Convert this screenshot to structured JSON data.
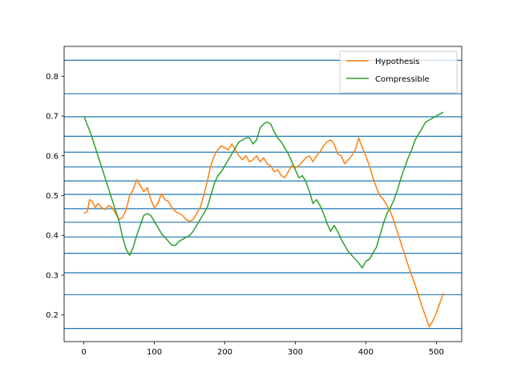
{
  "chart_data": {
    "type": "line",
    "title": "",
    "xlabel": "",
    "ylabel": "",
    "xlim": [
      -28,
      536
    ],
    "ylim": [
      0.133,
      0.875
    ],
    "xticks": [
      0,
      100,
      200,
      300,
      400,
      500
    ],
    "xtick_labels": [
      "0",
      "100",
      "200",
      "300",
      "400",
      "500"
    ],
    "yticks": [
      0.2,
      0.3,
      0.4,
      0.5,
      0.6,
      0.7,
      0.8
    ],
    "ytick_labels": [
      "0.2",
      "0.3",
      "0.4",
      "0.5",
      "0.6",
      "0.7",
      "0.8"
    ],
    "hlines": [
      0.166,
      0.251,
      0.306,
      0.355,
      0.396,
      0.433,
      0.467,
      0.503,
      0.537,
      0.572,
      0.609,
      0.649,
      0.698,
      0.756,
      0.84
    ],
    "hline_color": "#1f77b4",
    "legend_position": "upper right",
    "grid": false,
    "series": [
      {
        "name": "Hypothesis",
        "color": "#ff7f0e",
        "points": [
          [
            0,
            0.455
          ],
          [
            5,
            0.46
          ],
          [
            8,
            0.49
          ],
          [
            12,
            0.485
          ],
          [
            16,
            0.47
          ],
          [
            20,
            0.48
          ],
          [
            25,
            0.47
          ],
          [
            30,
            0.465
          ],
          [
            35,
            0.475
          ],
          [
            40,
            0.47
          ],
          [
            45,
            0.455
          ],
          [
            50,
            0.44
          ],
          [
            55,
            0.445
          ],
          [
            60,
            0.465
          ],
          [
            65,
            0.5
          ],
          [
            70,
            0.515
          ],
          [
            75,
            0.54
          ],
          [
            80,
            0.525
          ],
          [
            85,
            0.51
          ],
          [
            90,
            0.52
          ],
          [
            95,
            0.49
          ],
          [
            100,
            0.47
          ],
          [
            105,
            0.48
          ],
          [
            110,
            0.505
          ],
          [
            115,
            0.49
          ],
          [
            120,
            0.485
          ],
          [
            125,
            0.47
          ],
          [
            130,
            0.46
          ],
          [
            135,
            0.455
          ],
          [
            140,
            0.45
          ],
          [
            145,
            0.44
          ],
          [
            150,
            0.435
          ],
          [
            155,
            0.44
          ],
          [
            160,
            0.455
          ],
          [
            165,
            0.47
          ],
          [
            170,
            0.5
          ],
          [
            175,
            0.535
          ],
          [
            180,
            0.575
          ],
          [
            185,
            0.6
          ],
          [
            190,
            0.615
          ],
          [
            195,
            0.625
          ],
          [
            200,
            0.62
          ],
          [
            205,
            0.615
          ],
          [
            210,
            0.63
          ],
          [
            215,
            0.615
          ],
          [
            220,
            0.6
          ],
          [
            225,
            0.59
          ],
          [
            230,
            0.6
          ],
          [
            235,
            0.585
          ],
          [
            240,
            0.59
          ],
          [
            245,
            0.6
          ],
          [
            250,
            0.585
          ],
          [
            255,
            0.595
          ],
          [
            260,
            0.58
          ],
          [
            265,
            0.575
          ],
          [
            270,
            0.56
          ],
          [
            275,
            0.565
          ],
          [
            280,
            0.55
          ],
          [
            285,
            0.545
          ],
          [
            290,
            0.56
          ],
          [
            295,
            0.575
          ],
          [
            300,
            0.57
          ],
          [
            305,
            0.575
          ],
          [
            310,
            0.585
          ],
          [
            315,
            0.595
          ],
          [
            320,
            0.6
          ],
          [
            325,
            0.585
          ],
          [
            330,
            0.6
          ],
          [
            335,
            0.61
          ],
          [
            340,
            0.625
          ],
          [
            345,
            0.635
          ],
          [
            350,
            0.64
          ],
          [
            355,
            0.63
          ],
          [
            360,
            0.605
          ],
          [
            365,
            0.6
          ],
          [
            370,
            0.58
          ],
          [
            375,
            0.59
          ],
          [
            380,
            0.6
          ],
          [
            385,
            0.615
          ],
          [
            390,
            0.645
          ],
          [
            395,
            0.62
          ],
          [
            400,
            0.6
          ],
          [
            405,
            0.575
          ],
          [
            410,
            0.545
          ],
          [
            415,
            0.52
          ],
          [
            420,
            0.5
          ],
          [
            425,
            0.49
          ],
          [
            430,
            0.475
          ],
          [
            435,
            0.46
          ],
          [
            440,
            0.435
          ],
          [
            450,
            0.38
          ],
          [
            460,
            0.325
          ],
          [
            470,
            0.275
          ],
          [
            480,
            0.22
          ],
          [
            490,
            0.17
          ],
          [
            495,
            0.185
          ],
          [
            500,
            0.205
          ],
          [
            505,
            0.23
          ],
          [
            510,
            0.255
          ]
        ]
      },
      {
        "name": "Compressible",
        "color": "#2ca02c",
        "points": [
          [
            0,
            0.7
          ],
          [
            10,
            0.655
          ],
          [
            20,
            0.6
          ],
          [
            30,
            0.545
          ],
          [
            40,
            0.49
          ],
          [
            50,
            0.435
          ],
          [
            55,
            0.395
          ],
          [
            60,
            0.365
          ],
          [
            65,
            0.35
          ],
          [
            70,
            0.37
          ],
          [
            75,
            0.4
          ],
          [
            80,
            0.425
          ],
          [
            85,
            0.45
          ],
          [
            90,
            0.455
          ],
          [
            95,
            0.45
          ],
          [
            100,
            0.435
          ],
          [
            105,
            0.42
          ],
          [
            110,
            0.405
          ],
          [
            115,
            0.395
          ],
          [
            120,
            0.385
          ],
          [
            125,
            0.375
          ],
          [
            130,
            0.375
          ],
          [
            135,
            0.385
          ],
          [
            140,
            0.39
          ],
          [
            145,
            0.395
          ],
          [
            150,
            0.4
          ],
          [
            155,
            0.41
          ],
          [
            160,
            0.425
          ],
          [
            165,
            0.44
          ],
          [
            170,
            0.455
          ],
          [
            175,
            0.47
          ],
          [
            180,
            0.5
          ],
          [
            185,
            0.53
          ],
          [
            190,
            0.55
          ],
          [
            195,
            0.56
          ],
          [
            200,
            0.575
          ],
          [
            205,
            0.59
          ],
          [
            210,
            0.605
          ],
          [
            215,
            0.62
          ],
          [
            220,
            0.635
          ],
          [
            225,
            0.64
          ],
          [
            230,
            0.645
          ],
          [
            235,
            0.645
          ],
          [
            240,
            0.63
          ],
          [
            245,
            0.64
          ],
          [
            250,
            0.67
          ],
          [
            255,
            0.68
          ],
          [
            260,
            0.685
          ],
          [
            265,
            0.68
          ],
          [
            270,
            0.66
          ],
          [
            275,
            0.645
          ],
          [
            280,
            0.635
          ],
          [
            285,
            0.62
          ],
          [
            290,
            0.605
          ],
          [
            295,
            0.585
          ],
          [
            300,
            0.565
          ],
          [
            305,
            0.545
          ],
          [
            310,
            0.55
          ],
          [
            315,
            0.535
          ],
          [
            320,
            0.51
          ],
          [
            325,
            0.48
          ],
          [
            330,
            0.49
          ],
          [
            335,
            0.475
          ],
          [
            340,
            0.455
          ],
          [
            345,
            0.43
          ],
          [
            350,
            0.41
          ],
          [
            355,
            0.425
          ],
          [
            360,
            0.41
          ],
          [
            365,
            0.39
          ],
          [
            370,
            0.375
          ],
          [
            375,
            0.36
          ],
          [
            380,
            0.35
          ],
          [
            385,
            0.34
          ],
          [
            390,
            0.33
          ],
          [
            395,
            0.318
          ],
          [
            400,
            0.335
          ],
          [
            405,
            0.34
          ],
          [
            410,
            0.355
          ],
          [
            415,
            0.37
          ],
          [
            420,
            0.4
          ],
          [
            425,
            0.43
          ],
          [
            430,
            0.455
          ],
          [
            435,
            0.47
          ],
          [
            440,
            0.49
          ],
          [
            445,
            0.515
          ],
          [
            450,
            0.545
          ],
          [
            455,
            0.57
          ],
          [
            460,
            0.595
          ],
          [
            465,
            0.615
          ],
          [
            470,
            0.64
          ],
          [
            475,
            0.655
          ],
          [
            480,
            0.67
          ],
          [
            485,
            0.685
          ],
          [
            490,
            0.69
          ],
          [
            495,
            0.695
          ],
          [
            500,
            0.7
          ],
          [
            505,
            0.705
          ],
          [
            510,
            0.71
          ]
        ]
      }
    ]
  }
}
